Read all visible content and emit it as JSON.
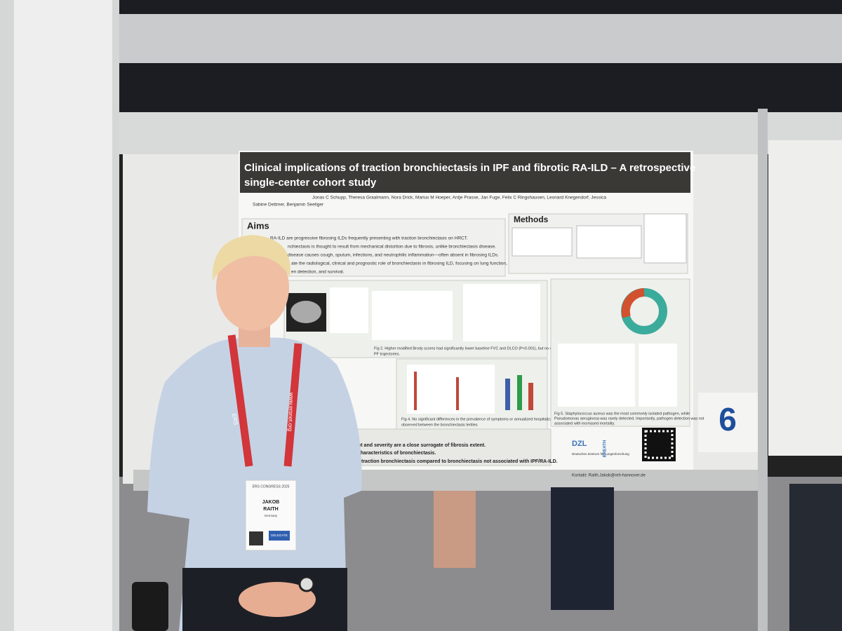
{
  "poster": {
    "title_line1": "Clinical implications of traction bronchiectasis in IPF and fibrotic RA-ILD – A retrospective",
    "title_line2": "single-center cohort study",
    "authors_line1": "Jonas C Schupp, Theresa Graalmann, Nora Drick, Marius M Hoeper, Antje Prasse, Jan Fuge, Felix C Ringshausen, Leonard Knegendorf, Jessica",
    "authors_line2": "Sabine Dettmer, Benjamin Seeliger",
    "aims": {
      "heading": "Aims",
      "bullets": [
        "RA-ILD are progressive fibrosing ILDs frequently presenting with traction bronchiectasis on HRCT.",
        "nchiectasis is thought to result from mechanical distortion due to fibrosis, unlike bronchiectasis disease.",
        "disease causes cough, sputum, infections, and neutrophilic inflammation—often absent in fibrosing ILDs.",
        "ate the radiological, clinical and prognostic role of bronchiectasis in fibrosing ILD, focusing on lung function,",
        "en detection, and survival."
      ]
    },
    "methods": {
      "heading": "Methods"
    },
    "captions": [
      "Fig 2. Higher modified Brody scores had significantly lower baseline FVC and DLCO (P<0.001), but no differences in",
      "PF trajectories.",
      "Fig 4. No significant differences in the prevalence of symptoms or annualized hospitalization rate were",
      "observed between the bronchiectasis tertiles",
      "Fig 5. Staphylococcus aureus was the most commonly isolated pathogen, while",
      "Pseudomonas aeruginosa was rarely detected. Importantly, pathogen detection was not",
      "associated with increased mortality."
    ],
    "conclusions": [
      "nt and severity are a close surrogate of fibrosis extent.",
      "characteristics of bronchiectasis.",
      "traction bronchiectasis compared to bronchiectasis not associated with IPF/RA-ILD."
    ],
    "logos": {
      "dzl": "DZL",
      "dzl_name": "Deutsches Zentrum für Lungenforschung",
      "breath": "BREATH"
    },
    "contact": "Kontakt: Raith.Jakob@mh-hannover.de"
  },
  "board_number": "6",
  "lanyard": "www.ersnet.org",
  "lanyard_logo": "ERS",
  "badge": {
    "event": "ERS CONGRESS 2025",
    "first_name": "JAKOB",
    "last_name": "RAITH",
    "country": "Germany",
    "role": "DELEGATE"
  }
}
